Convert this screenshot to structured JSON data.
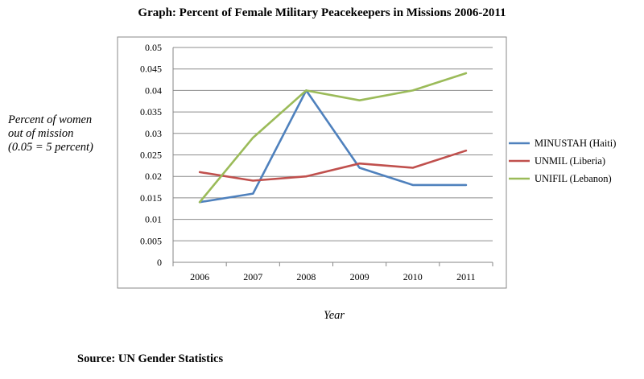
{
  "chart_data": {
    "type": "line",
    "title": "Graph:  Percent of Female Military  Peacekeepers in Missions 2006-2011",
    "ylabel": [
      "Percent of women",
      "out of mission",
      "(0.05 = 5 percent)"
    ],
    "xlabel": "Year",
    "categories": [
      "2006",
      "2007",
      "2008",
      "2009",
      "2010",
      "2011"
    ],
    "yticks": [
      "0",
      "0.005",
      "0.01",
      "0.015",
      "0.02",
      "0.025",
      "0.03",
      "0.035",
      "0.04",
      "0.045",
      "0.05"
    ],
    "ylim": [
      0,
      0.05
    ],
    "grid": true,
    "legend_position": "right",
    "series": [
      {
        "name": "MINUSTAH (Haiti)",
        "color": "#4f81bd",
        "values": [
          0.014,
          0.016,
          0.04,
          0.022,
          0.018,
          0.018
        ]
      },
      {
        "name": "UNMIL (Liberia)",
        "color": "#c0504d",
        "values": [
          0.021,
          0.019,
          0.02,
          0.023,
          0.022,
          0.026
        ]
      },
      {
        "name": "UNIFIL (Lebanon)",
        "color": "#9bbb59",
        "values": [
          0.014,
          0.029,
          0.04,
          0.0377,
          0.04,
          0.044
        ]
      }
    ]
  },
  "source": "Source:  UN Gender Statistics"
}
